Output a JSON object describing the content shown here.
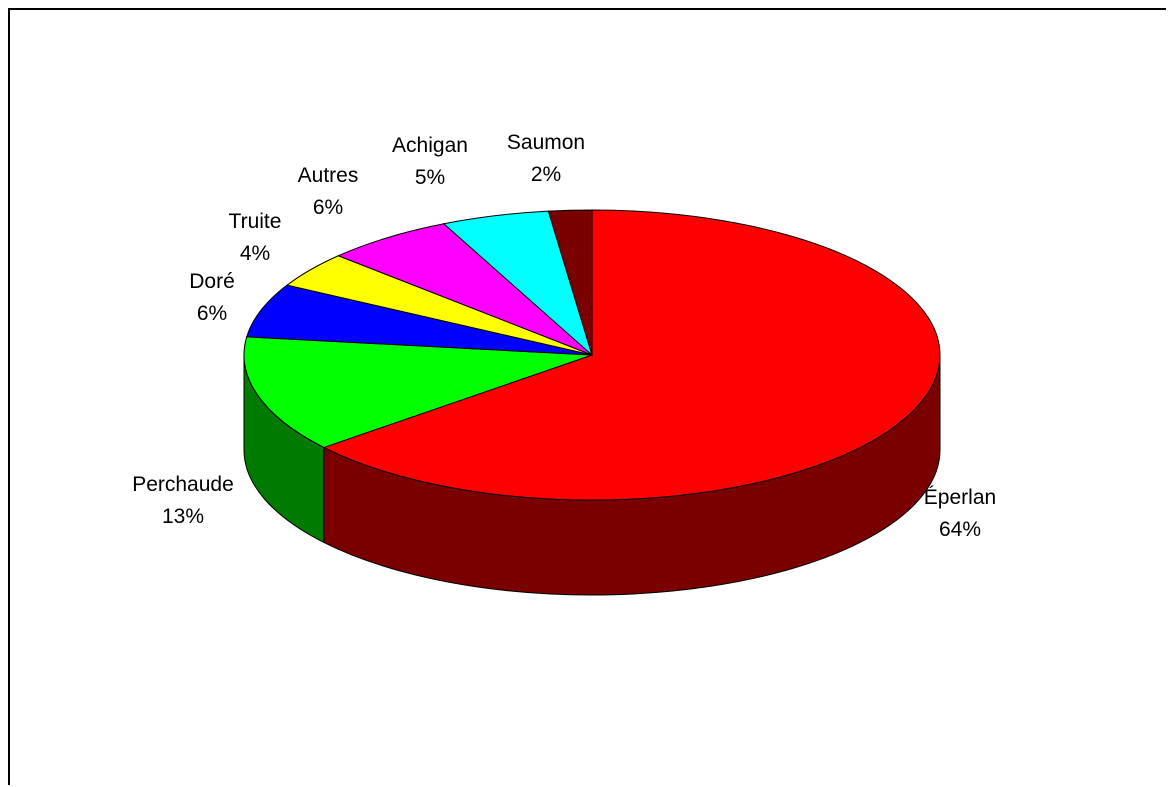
{
  "chart_data": {
    "type": "pie",
    "title": "",
    "slices": [
      {
        "label": "Éperlan",
        "pct_label": "64%",
        "value": 64,
        "color": "#ff0000",
        "side_color": "#7a0000"
      },
      {
        "label": "Perchaude",
        "pct_label": "13%",
        "value": 13,
        "color": "#00ff00",
        "side_color": "#007a00"
      },
      {
        "label": "Doré",
        "pct_label": "6%",
        "value": 6,
        "color": "#0000ff",
        "side_color": "#00007a"
      },
      {
        "label": "Truite",
        "pct_label": "4%",
        "value": 4,
        "color": "#ffff00",
        "side_color": "#7a7a00"
      },
      {
        "label": "Autres",
        "pct_label": "6%",
        "value": 6,
        "color": "#ff00ff",
        "side_color": "#7a007a"
      },
      {
        "label": "Achigan",
        "pct_label": "5%",
        "value": 5,
        "color": "#00ffff",
        "side_color": "#007a7a"
      },
      {
        "label": "Saumon",
        "pct_label": "2%",
        "value": 2,
        "color": "#7a0000",
        "side_color": "#3d0000"
      }
    ],
    "style": "3d",
    "legend": "none"
  }
}
